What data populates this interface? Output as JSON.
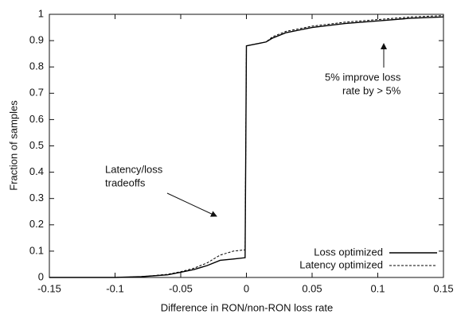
{
  "chart_data": {
    "type": "line",
    "x_label": "Difference in RON/non-RON loss rate",
    "y_label": "Fraction of samples",
    "x": [
      -0.15,
      -0.1,
      -0.08,
      -0.06,
      -0.05,
      -0.04,
      -0.03,
      -0.02,
      -0.01,
      -0.001,
      0,
      0.005,
      0.01,
      0.015,
      0.02,
      0.03,
      0.05,
      0.075,
      0.1,
      0.125,
      0.15
    ],
    "series": [
      {
        "name": "Loss optimized",
        "color": "#000000",
        "style": "solid",
        "values": [
          0,
          0,
          0.003,
          0.01,
          0.02,
          0.03,
          0.045,
          0.065,
          0.07,
          0.075,
          0.88,
          0.885,
          0.89,
          0.895,
          0.91,
          0.93,
          0.95,
          0.965,
          0.975,
          0.985,
          0.99
        ]
      },
      {
        "name": "Latency optimized",
        "color": "#000000",
        "style": "dashed",
        "values": [
          0,
          0,
          0.003,
          0.012,
          0.022,
          0.035,
          0.055,
          0.085,
          0.1,
          0.105,
          0.88,
          0.885,
          0.89,
          0.895,
          0.915,
          0.935,
          0.955,
          0.97,
          0.98,
          0.99,
          0.995
        ]
      }
    ],
    "xlim": [
      -0.15,
      0.15
    ],
    "xticks": [
      -0.15,
      -0.1,
      -0.05,
      0,
      0.05,
      0.1,
      0.15
    ],
    "ylim": [
      0,
      1
    ],
    "yticks": [
      0,
      0.1,
      0.2,
      0.3,
      0.4,
      0.5,
      0.6,
      0.7,
      0.8,
      0.9,
      1
    ],
    "grid": false,
    "legend": "lower right",
    "annotations": [
      {
        "lines": [
          "Latency/loss",
          "tradeoffs"
        ]
      },
      {
        "lines": [
          "5% improve loss",
          "rate by > 5%"
        ]
      }
    ]
  }
}
